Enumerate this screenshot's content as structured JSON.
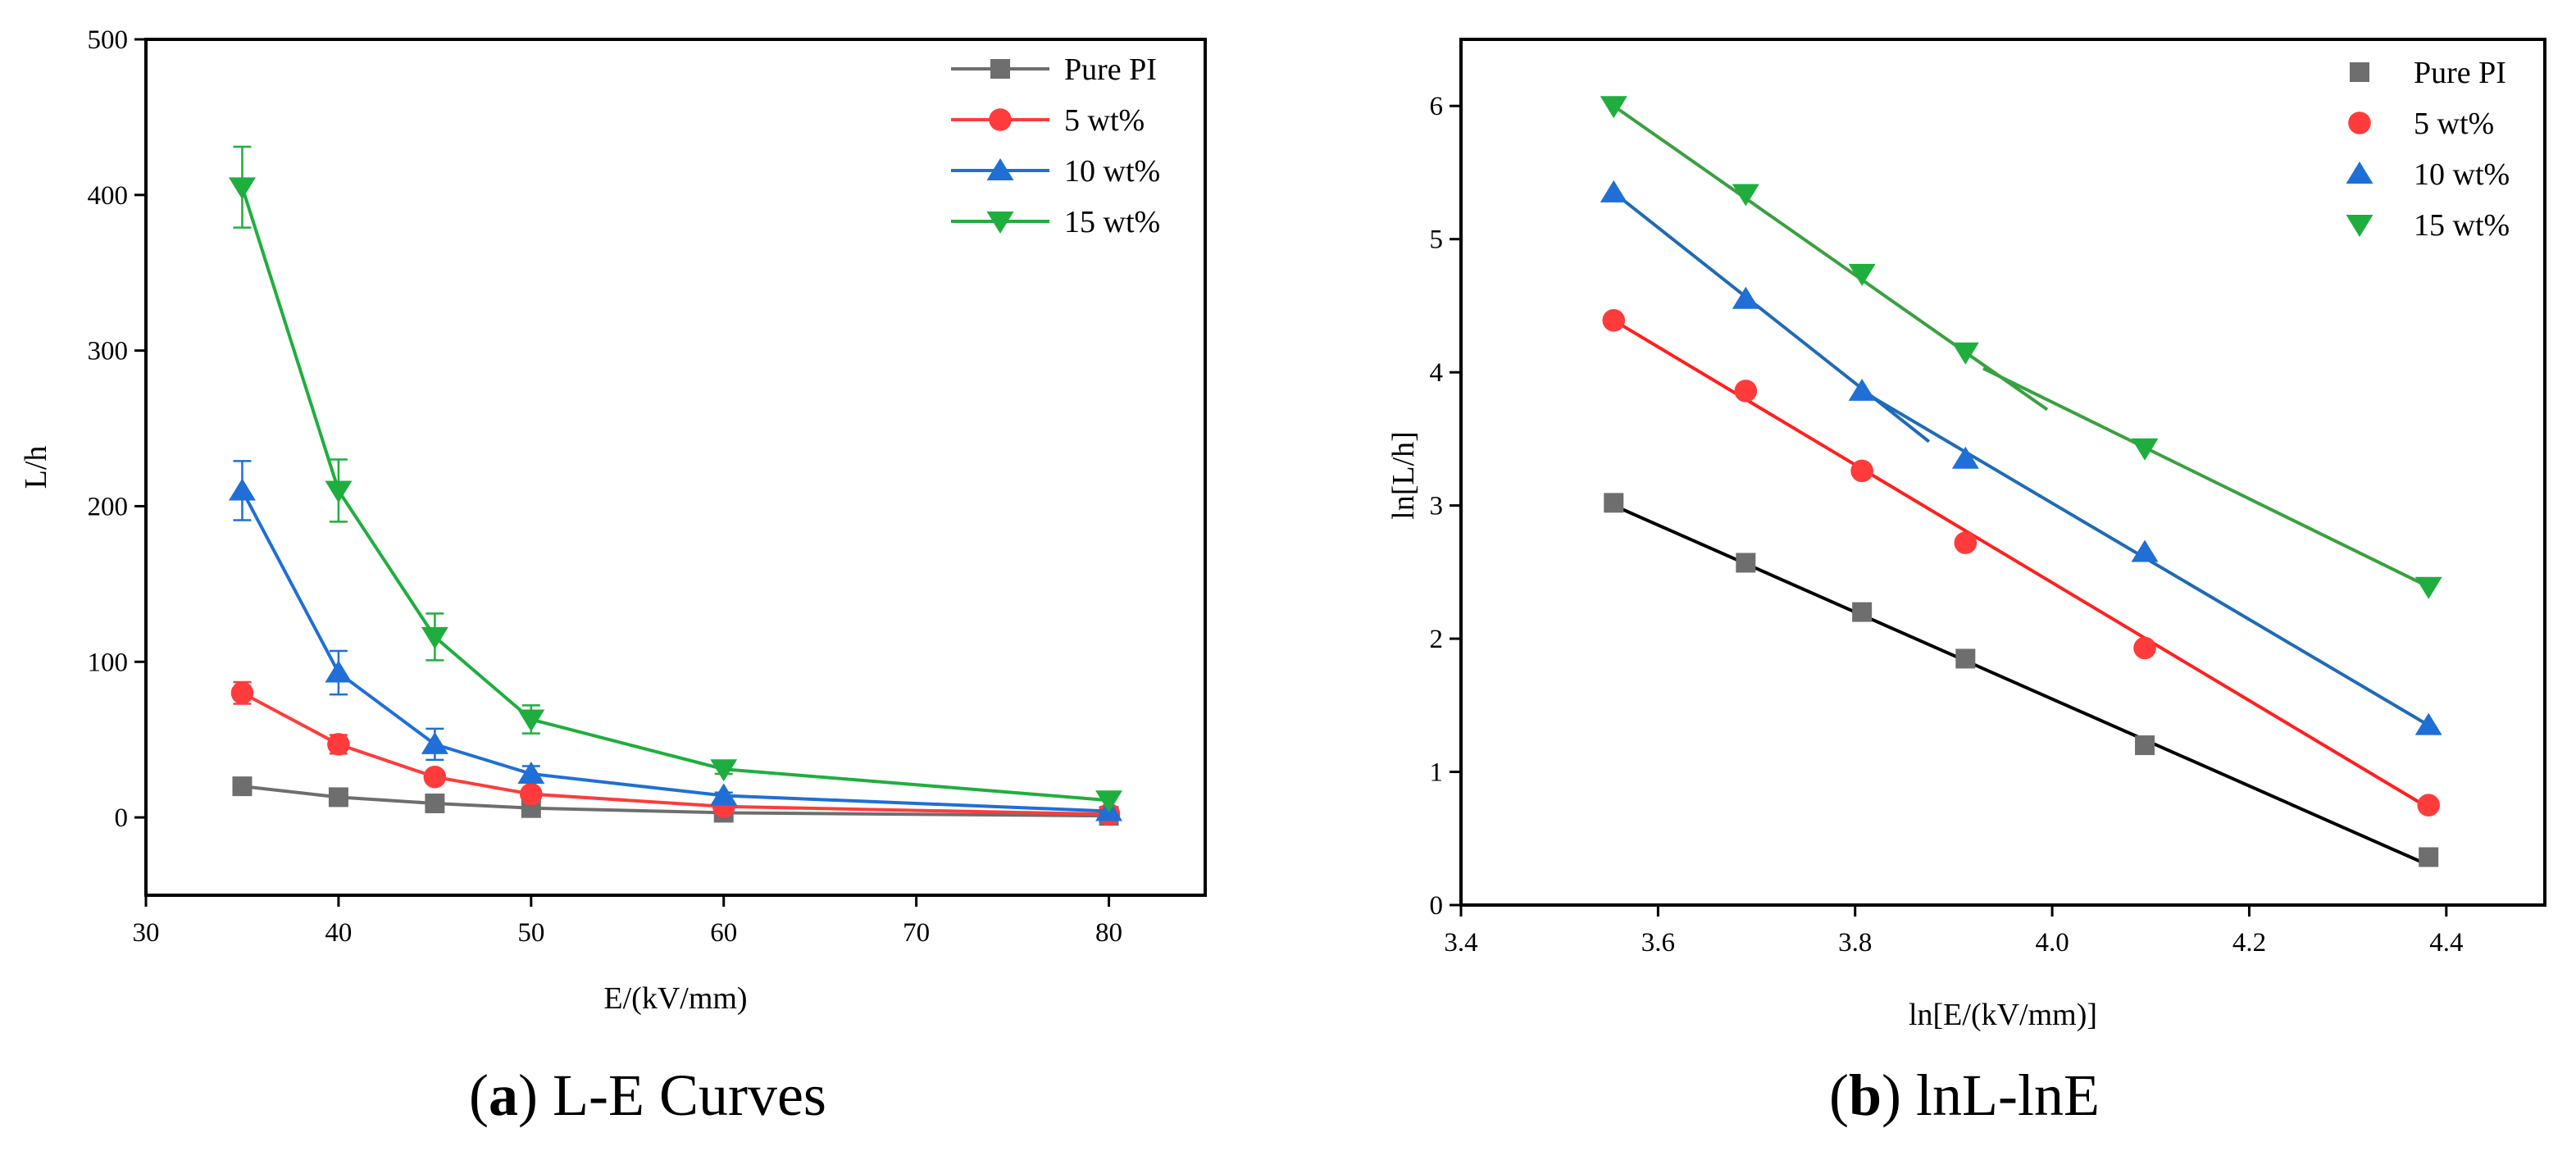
{
  "chart_data": [
    {
      "type": "line",
      "caption": {
        "open": "(",
        "letter": "a",
        "close": ")",
        "text": " L-E Curves"
      },
      "xlabel": "E/(kV/mm)",
      "ylabel": "L/h",
      "xlim": [
        30,
        85
      ],
      "ylim": [
        -50,
        500
      ],
      "xticks": [
        30,
        40,
        50,
        60,
        70,
        80
      ],
      "yticks": [
        0,
        100,
        200,
        300,
        400,
        500
      ],
      "legend_position": "top-right",
      "series": [
        {
          "name": "Pure PI",
          "marker": "square",
          "color": "#6e6e6e",
          "line_color": "#6e6e6e",
          "x": [
            35,
            40,
            45,
            50,
            60,
            80
          ],
          "y": [
            20,
            13,
            9,
            6,
            3,
            1
          ],
          "err": [
            0,
            0,
            0,
            0,
            0,
            0
          ]
        },
        {
          "name": "5 wt%",
          "marker": "circle",
          "color": "#ff3b3b",
          "line_color": "#ff3b3b",
          "x": [
            35,
            40,
            45,
            50,
            60,
            80
          ],
          "y": [
            80,
            47,
            26,
            15,
            7,
            2
          ],
          "err": [
            7,
            6,
            4,
            3,
            1,
            0
          ]
        },
        {
          "name": "10 wt%",
          "marker": "triangle-up",
          "color": "#1f6fd6",
          "line_color": "#1f6fd6",
          "x": [
            35,
            40,
            45,
            50,
            60,
            80
          ],
          "y": [
            210,
            93,
            47,
            28,
            14,
            4
          ],
          "err": [
            19,
            14,
            10,
            5,
            2,
            0
          ]
        },
        {
          "name": "15 wt%",
          "marker": "triangle-down",
          "color": "#1fae3e",
          "line_color": "#1fae3e",
          "x": [
            35,
            40,
            45,
            50,
            60,
            80
          ],
          "y": [
            405,
            210,
            116,
            63,
            31,
            11
          ],
          "err": [
            26,
            20,
            15,
            9,
            3,
            0
          ]
        }
      ]
    },
    {
      "type": "scatter",
      "caption": {
        "open": "(",
        "letter": "b",
        "close": ")",
        "text": " lnL-lnE"
      },
      "xlabel": "ln[E/(kV/mm)]",
      "ylabel": "ln[L/h]",
      "xlim": [
        3.4,
        4.5
      ],
      "ylim": [
        0,
        6.5
      ],
      "xticks": [
        3.4,
        3.6,
        3.8,
        4.0,
        4.2,
        4.4
      ],
      "xtick_labels": [
        "3.4",
        "3.6",
        "3.8",
        "4.0",
        "4.2",
        "4.4"
      ],
      "yticks": [
        0,
        1,
        2,
        3,
        4,
        5,
        6
      ],
      "legend_position": "top-right",
      "series": [
        {
          "name": "Pure PI",
          "marker": "square",
          "color": "#6e6e6e",
          "x": [
            3.555,
            3.689,
            3.807,
            3.912,
            4.094,
            4.382
          ],
          "y": [
            3.02,
            2.57,
            2.2,
            1.85,
            1.2,
            0.36
          ]
        },
        {
          "name": "5 wt%",
          "marker": "circle",
          "color": "#ff3b3b",
          "x": [
            3.555,
            3.689,
            3.807,
            3.912,
            4.094,
            4.382
          ],
          "y": [
            4.39,
            3.86,
            3.26,
            2.72,
            1.93,
            0.75
          ]
        },
        {
          "name": "10 wt%",
          "marker": "triangle-up",
          "color": "#1f6fd6",
          "x": [
            3.555,
            3.689,
            3.807,
            3.912,
            4.094,
            4.382
          ],
          "y": [
            5.35,
            4.55,
            3.86,
            3.35,
            2.65,
            1.35
          ]
        },
        {
          "name": "15 wt%",
          "marker": "triangle-down",
          "color": "#1fae3e",
          "x": [
            3.555,
            3.689,
            3.807,
            3.912,
            4.094,
            4.382
          ],
          "y": [
            6.0,
            5.34,
            4.74,
            4.15,
            3.43,
            2.39
          ]
        }
      ],
      "fit_lines": [
        {
          "series": "Pure PI",
          "color": "#000000",
          "x": [
            3.555,
            4.382
          ],
          "y": [
            3.0,
            0.3
          ]
        },
        {
          "series": "5 wt%",
          "color": "#ff2020",
          "x": [
            3.555,
            4.382
          ],
          "y": [
            4.39,
            0.73
          ]
        },
        {
          "series": "10 wt% (low E)",
          "color": "#1f6bb5",
          "x": [
            3.555,
            3.875
          ],
          "y": [
            5.35,
            3.48
          ]
        },
        {
          "series": "10 wt% (high E)",
          "color": "#1f6bb5",
          "x": [
            3.807,
            4.382
          ],
          "y": [
            3.86,
            1.35
          ]
        },
        {
          "series": "15 wt% (low E)",
          "color": "#3aa040",
          "x": [
            3.555,
            3.995
          ],
          "y": [
            6.0,
            3.72
          ]
        },
        {
          "series": "15 wt% (high E)",
          "color": "#3aa040",
          "x": [
            3.93,
            4.382
          ],
          "y": [
            4.03,
            2.39
          ]
        }
      ]
    }
  ]
}
